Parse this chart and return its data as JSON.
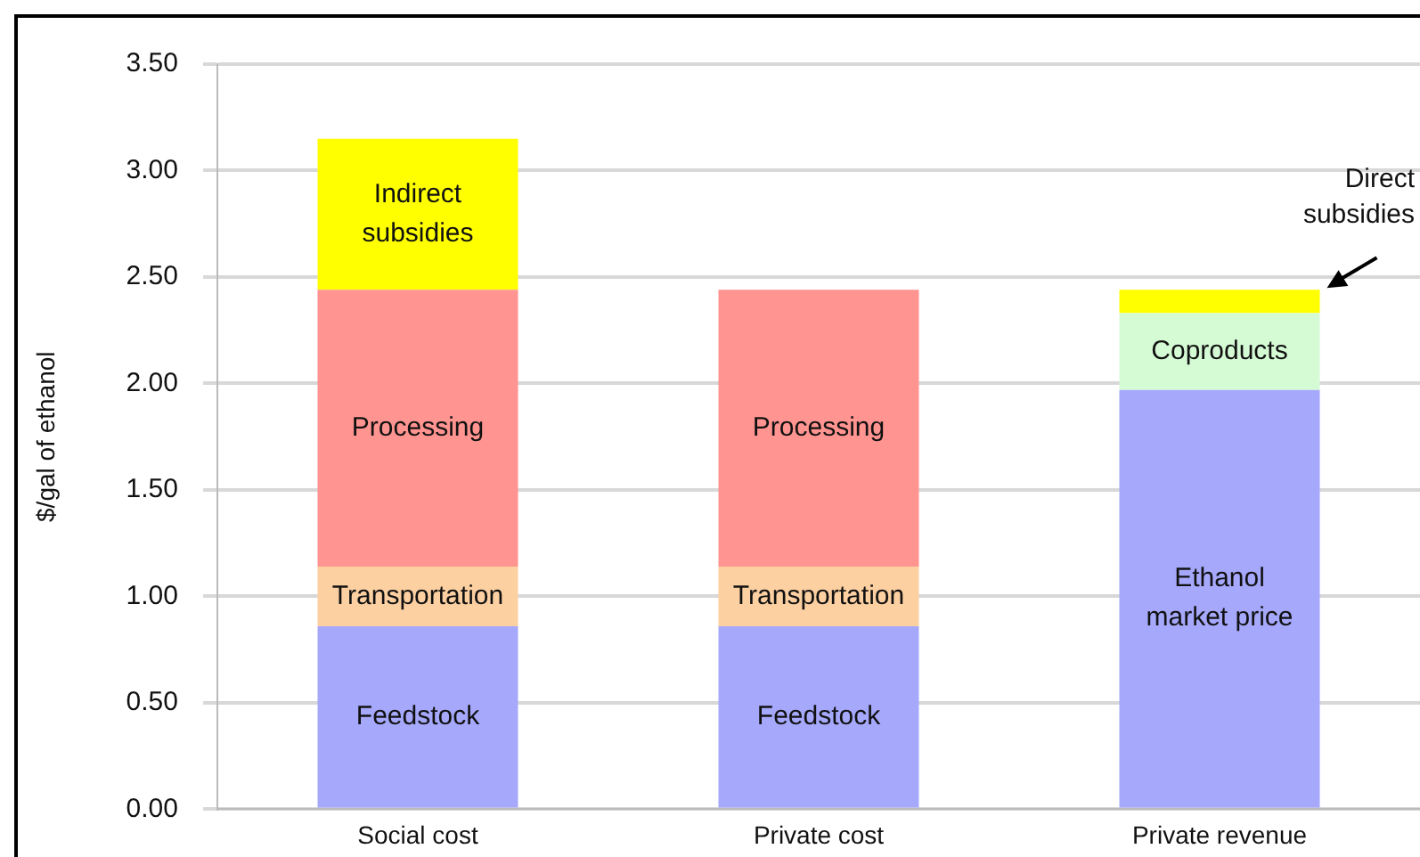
{
  "chart_data": {
    "type": "bar",
    "stacked": true,
    "ylabel": "$/gal of ethanol",
    "categories": [
      "Social cost",
      "Private cost",
      "Private revenue"
    ],
    "series": [
      {
        "name": "Feedstock",
        "color": "#a6a8fc",
        "values": [
          0.86,
          0.86,
          null
        ]
      },
      {
        "name": "Transportation",
        "color": "#fdd0a2",
        "values": [
          0.28,
          0.28,
          null
        ]
      },
      {
        "name": "Processing",
        "color": "#ff9490",
        "values": [
          1.3,
          1.3,
          null
        ]
      },
      {
        "name": "Indirect subsidies",
        "color": "#ffff00",
        "values": [
          0.71,
          null,
          null
        ]
      },
      {
        "name": "Ethanol market price",
        "color": "#a6a8fc",
        "values": [
          null,
          null,
          1.97
        ]
      },
      {
        "name": "Coproducts",
        "color": "#d5fbd5",
        "values": [
          null,
          null,
          0.36
        ]
      },
      {
        "name": "Direct subsidies",
        "color": "#ffff00",
        "values": [
          null,
          null,
          0.11
        ]
      }
    ],
    "ylim": [
      0,
      3.5
    ],
    "yticks": [
      {
        "value": 0,
        "label": "0.00"
      },
      {
        "value": 0.5,
        "label": "0.50"
      },
      {
        "value": 1,
        "label": "1.00"
      },
      {
        "value": 1.5,
        "label": "1.50"
      },
      {
        "value": 2,
        "label": "2.00"
      },
      {
        "value": 2.5,
        "label": "2.50"
      },
      {
        "value": 3,
        "label": "3.00"
      },
      {
        "value": 3.5,
        "label": "3.50"
      }
    ],
    "grid": "y",
    "legend": false
  }
}
